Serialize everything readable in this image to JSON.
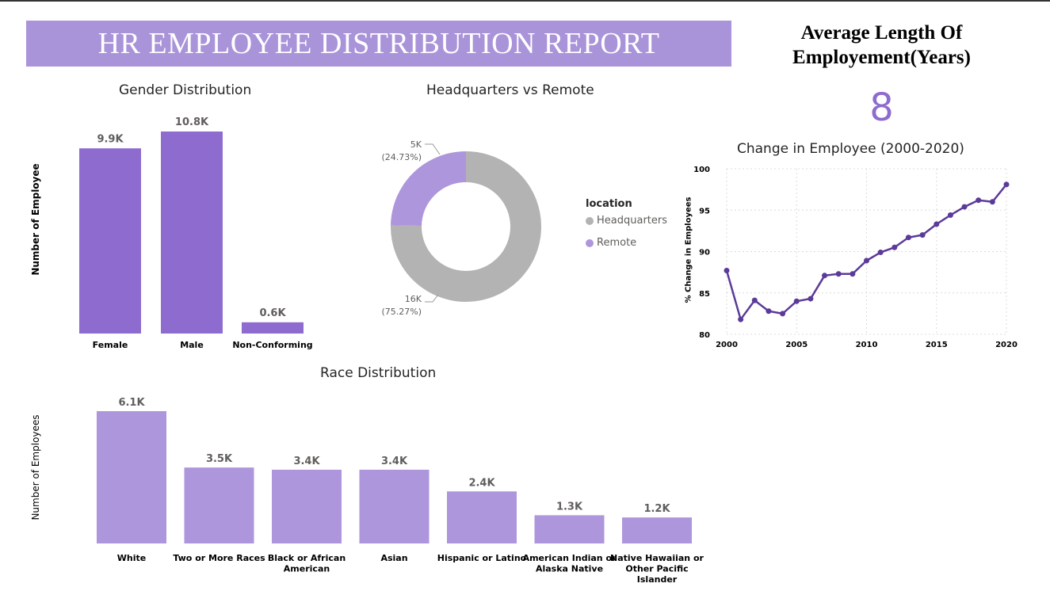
{
  "report": {
    "title": "HR EMPLOYEE DISTRIBUTION REPORT",
    "kpi_title": "Average Length Of Employement(Years)",
    "kpi_value": "8"
  },
  "colors": {
    "banner": "#a993d9",
    "gender_bar": "#8e6ccf",
    "race_bar": "#ad96dc",
    "line": "#5b3a9a",
    "headquarters": "#b3b3b3",
    "remote": "#ad96dc"
  },
  "chart_data": [
    {
      "id": "gender",
      "type": "bar",
      "title": "Gender Distribution",
      "ylabel": "Number of Employee",
      "categories": [
        "Female",
        "Male",
        "Non-Conforming"
      ],
      "values": [
        9.9,
        10.8,
        0.6
      ],
      "labels": [
        "9.9K",
        "10.8K",
        "0.6K"
      ],
      "ylim": [
        0,
        10.8
      ]
    },
    {
      "id": "location",
      "type": "pie",
      "title": "Headquarters vs Remote",
      "legend_title": "location",
      "legend_position": "right",
      "slices": [
        {
          "name": "Headquarters",
          "value": 75.27,
          "label": "16K",
          "pct": "(75.27%)"
        },
        {
          "name": "Remote",
          "value": 24.73,
          "label": "5K",
          "pct": "(24.73%)"
        }
      ]
    },
    {
      "id": "change",
      "type": "line",
      "title": "Change in Employee (2000-2020)",
      "ylabel": "% Change in Employees",
      "x": [
        2000,
        2001,
        2002,
        2003,
        2004,
        2005,
        2006,
        2007,
        2008,
        2009,
        2010,
        2011,
        2012,
        2013,
        2014,
        2015,
        2016,
        2017,
        2018,
        2019,
        2020
      ],
      "y": [
        87.7,
        81.8,
        84.1,
        82.8,
        82.5,
        84.0,
        84.3,
        87.1,
        87.3,
        87.3,
        88.9,
        89.9,
        90.5,
        91.7,
        92.0,
        93.3,
        94.4,
        95.4,
        96.2,
        96.0,
        98.1
      ],
      "xticks": [
        2000,
        2005,
        2010,
        2015,
        2020
      ],
      "yticks": [
        80,
        85,
        90,
        95,
        100
      ],
      "ylim": [
        80,
        100
      ],
      "grid": true
    },
    {
      "id": "race",
      "type": "bar",
      "title": "Race Distribution",
      "ylabel": "Number of Employees",
      "categories": [
        [
          "White"
        ],
        [
          "Two or More Races"
        ],
        [
          "Black or African",
          "American"
        ],
        [
          "Asian"
        ],
        [
          "Hispanic or Latino"
        ],
        [
          "American Indian or",
          "Alaska Native"
        ],
        [
          "Native Hawaiian or",
          "Other Pacific",
          "Islander"
        ]
      ],
      "values": [
        6.1,
        3.5,
        3.4,
        3.4,
        2.4,
        1.3,
        1.2
      ],
      "labels": [
        "6.1K",
        "3.5K",
        "3.4K",
        "3.4K",
        "2.4K",
        "1.3K",
        "1.2K"
      ],
      "ylim": [
        0,
        6.1
      ]
    }
  ]
}
